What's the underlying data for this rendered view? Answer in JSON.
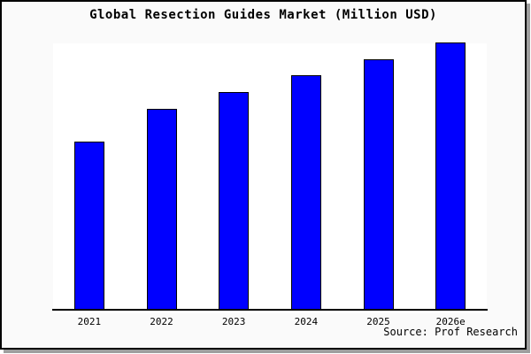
{
  "title": "Global Resection Guides Market (Million USD)",
  "source_note": "Source: Prof Research",
  "colors": {
    "bar_fill": "#0000ff",
    "bar_border": "#000000",
    "panel_bg": "#fafafa",
    "plot_bg": "#ffffff",
    "axis": "#000000",
    "panel_border": "#000000",
    "shadow": "#9e9e9e"
  },
  "chart_data": {
    "type": "bar",
    "title": "Global Resection Guides Market (Million USD)",
    "categories": [
      "2021",
      "2022",
      "2023",
      "2024",
      "2025",
      "2026e"
    ],
    "values": [
      62.7,
      75.0,
      81.3,
      87.7,
      93.7,
      100.0
    ],
    "value_note": "no y-axis labels shown; values are relative bar heights normalized so 2026e = 100",
    "xlabel": "",
    "ylabel": "",
    "ylim": [
      0,
      100
    ],
    "grid": false,
    "legend": null,
    "bar_color": "#0000ff",
    "annotations": [
      "Source: Prof Research"
    ]
  }
}
